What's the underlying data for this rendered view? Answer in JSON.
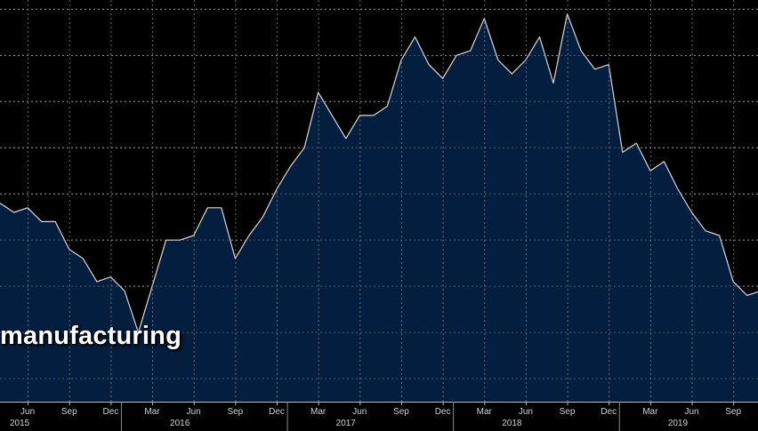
{
  "overlay": {
    "title": "manufacturing"
  },
  "colors": {
    "background": "#000000",
    "area_fill": "#041e3f",
    "line": "#d8d8d8",
    "grid": "#8a8a8a",
    "axis_text": "#d0d0d0"
  },
  "chart_data": {
    "type": "area",
    "title": "",
    "xlabel": "",
    "ylabel": "",
    "y_tick_labels_visible": false,
    "grid": true,
    "series": [
      {
        "name": "",
        "points": [
          [
            "2015-04",
            188
          ],
          [
            "2015-05",
            186
          ],
          [
            "2015-06",
            187
          ],
          [
            "2015-07",
            184
          ],
          [
            "2015-08",
            184
          ],
          [
            "2015-09",
            178
          ],
          [
            "2015-10",
            176
          ],
          [
            "2015-11",
            171
          ],
          [
            "2015-12",
            172
          ],
          [
            "2016-01",
            169
          ],
          [
            "2016-02",
            160
          ],
          [
            "2016-03",
            170
          ],
          [
            "2016-04",
            180
          ],
          [
            "2016-05",
            180
          ],
          [
            "2016-06",
            181
          ],
          [
            "2016-07",
            187
          ],
          [
            "2016-08",
            187
          ],
          [
            "2016-09",
            176
          ],
          [
            "2016-10",
            181
          ],
          [
            "2016-11",
            185
          ],
          [
            "2016-12",
            191
          ],
          [
            "2017-01",
            196
          ],
          [
            "2017-02",
            200
          ],
          [
            "2017-03",
            212
          ],
          [
            "2017-04",
            207
          ],
          [
            "2017-05",
            202
          ],
          [
            "2017-06",
            207
          ],
          [
            "2017-07",
            207
          ],
          [
            "2017-08",
            209
          ],
          [
            "2017-09",
            219
          ],
          [
            "2017-10",
            224
          ],
          [
            "2017-11",
            218
          ],
          [
            "2017-12",
            215
          ],
          [
            "2018-01",
            220
          ],
          [
            "2018-02",
            221
          ],
          [
            "2018-03",
            228
          ],
          [
            "2018-04",
            219
          ],
          [
            "2018-05",
            216
          ],
          [
            "2018-06",
            219
          ],
          [
            "2018-07",
            224
          ],
          [
            "2018-08",
            214
          ],
          [
            "2018-09",
            229
          ],
          [
            "2018-10",
            221
          ],
          [
            "2018-11",
            217
          ],
          [
            "2018-12",
            218
          ],
          [
            "2019-01",
            199
          ],
          [
            "2019-02",
            201
          ],
          [
            "2019-03",
            195
          ],
          [
            "2019-04",
            197
          ],
          [
            "2019-05",
            191
          ],
          [
            "2019-06",
            186
          ],
          [
            "2019-07",
            182
          ],
          [
            "2019-08",
            181
          ],
          [
            "2019-09",
            171
          ],
          [
            "2019-10",
            168
          ],
          [
            "2019-11",
            169
          ],
          [
            "2019-12",
            167
          ],
          [
            "2020-01",
            166
          ]
        ]
      }
    ],
    "x_ticks": [
      {
        "label": "Jun",
        "date": "2015-06"
      },
      {
        "label": "Sep",
        "date": "2015-09"
      },
      {
        "label": "Dec",
        "date": "2015-12"
      },
      {
        "label": "Mar",
        "date": "2016-03"
      },
      {
        "label": "Jun",
        "date": "2016-06"
      },
      {
        "label": "Sep",
        "date": "2016-09"
      },
      {
        "label": "Dec",
        "date": "2016-12"
      },
      {
        "label": "Mar",
        "date": "2017-03"
      },
      {
        "label": "Jun",
        "date": "2017-06"
      },
      {
        "label": "Sep",
        "date": "2017-09"
      },
      {
        "label": "Dec",
        "date": "2017-12"
      },
      {
        "label": "Mar",
        "date": "2018-03"
      },
      {
        "label": "Jun",
        "date": "2018-06"
      },
      {
        "label": "Sep",
        "date": "2018-09"
      },
      {
        "label": "Dec",
        "date": "2018-12"
      },
      {
        "label": "Mar",
        "date": "2019-03"
      },
      {
        "label": "Jun",
        "date": "2019-06"
      },
      {
        "label": "Sep",
        "date": "2019-09"
      },
      {
        "label": "D",
        "date": "2019-12"
      }
    ],
    "x_years": [
      {
        "label": "2015",
        "date": "2015-05"
      },
      {
        "label": "2016",
        "date": "2016-05"
      },
      {
        "label": "2017",
        "date": "2017-05"
      },
      {
        "label": "2018",
        "date": "2018-05"
      },
      {
        "label": "2019",
        "date": "2019-05"
      }
    ],
    "x_range": [
      "2015-04",
      "2020-01"
    ],
    "ylim": [
      145,
      232
    ],
    "y_gridlines": [
      150,
      160,
      170,
      180,
      190,
      200,
      210,
      220,
      230
    ]
  }
}
